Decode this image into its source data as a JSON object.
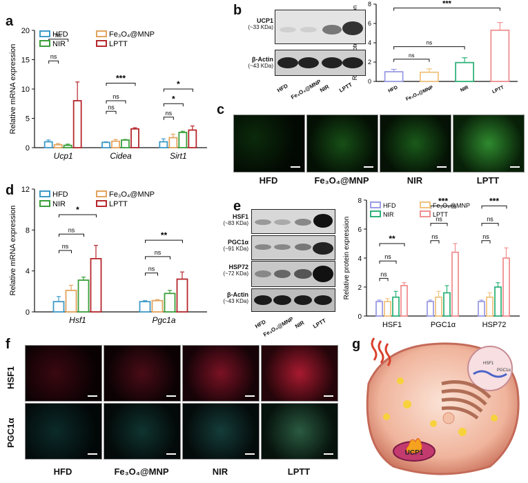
{
  "panels": {
    "a": "a",
    "b": "b",
    "c": "c",
    "d": "d",
    "e": "e",
    "f": "f",
    "g": "g"
  },
  "colors": {
    "HFD": "#3c9ac8",
    "Fe3O4@MNP": "#e3a35c",
    "NIR": "#3a9f3a",
    "LPTT": "#b5262b",
    "HFD_b": "#9b9be6",
    "Fe3O4@MNP_b": "#f1c27d",
    "NIR_b": "#2fb27a",
    "LPTT_b": "#f08f8f"
  },
  "chart_a": {
    "type": "bar",
    "ylabel": "Relative mRNA expression",
    "ylim": [
      0,
      20
    ],
    "yticks": [
      "0",
      "5",
      "10",
      "15",
      "20"
    ],
    "categories": [
      "Ucp1",
      "Cidea",
      "Sirt1"
    ],
    "legend": [
      {
        "label": "HFD",
        "key": "HFD"
      },
      {
        "label": "Fe₃O₄@MNP",
        "key": "Fe3O4@MNP"
      },
      {
        "label": "NIR",
        "key": "NIR"
      },
      {
        "label": "LPTT",
        "key": "LPTT"
      }
    ],
    "series": [
      {
        "key": "HFD",
        "values": [
          1.0,
          0.9,
          1.0
        ],
        "err": [
          0.3,
          0.1,
          0.5
        ]
      },
      {
        "key": "Fe3O4@MNP",
        "values": [
          0.5,
          1.1,
          1.7
        ],
        "err": [
          0.2,
          0.3,
          0.6
        ]
      },
      {
        "key": "NIR",
        "values": [
          0.4,
          1.3,
          2.6
        ],
        "err": [
          0.2,
          0.1,
          0.2
        ]
      },
      {
        "key": "LPTT",
        "values": [
          8.0,
          3.2,
          3.0
        ],
        "err": [
          3.2,
          0.2,
          0.7
        ]
      }
    ],
    "sig": [
      {
        "cat": 0,
        "from": 0,
        "to": 1,
        "y": 14.8,
        "text": "ns"
      },
      {
        "cat": 0,
        "from": 0,
        "to": 2,
        "y": 18.5,
        "text": "ns"
      },
      {
        "cat": 0,
        "from": 0,
        "to": 3,
        "y": 22.5,
        "text": "*"
      },
      {
        "cat": 1,
        "from": 0,
        "to": 1,
        "y": 6.2,
        "text": "ns"
      },
      {
        "cat": 1,
        "from": 0,
        "to": 2,
        "y": 8.0,
        "text": "ns"
      },
      {
        "cat": 1,
        "from": 0,
        "to": 3,
        "y": 11.0,
        "text": "***"
      },
      {
        "cat": 2,
        "from": 0,
        "to": 1,
        "y": 5.2,
        "text": "ns"
      },
      {
        "cat": 2,
        "from": 0,
        "to": 2,
        "y": 7.5,
        "text": "*"
      },
      {
        "cat": 2,
        "from": 0,
        "to": 3,
        "y": 10.0,
        "text": "*"
      }
    ]
  },
  "chart_b": {
    "type": "bar",
    "ylabel": "Relative protein expression",
    "ylim": [
      0,
      8
    ],
    "yticks": [
      "0",
      "2",
      "4",
      "6",
      "8"
    ],
    "categories": [
      "HFD",
      "Fe₃O₄@MNP",
      "NIR",
      "LPTT"
    ],
    "values": [
      1.0,
      0.95,
      1.95,
      5.3
    ],
    "err": [
      0.25,
      0.35,
      0.5,
      0.8
    ],
    "sig": [
      {
        "from": 0,
        "to": 1,
        "y": 2.3,
        "text": "ns"
      },
      {
        "from": 0,
        "to": 2,
        "y": 3.6,
        "text": "ns"
      },
      {
        "from": 0,
        "to": 3,
        "y": 7.6,
        "text": "***"
      }
    ]
  },
  "chart_d": {
    "type": "bar",
    "ylabel": "Relative mRNA expression",
    "ylim": [
      0,
      10
    ],
    "yticks": [
      "0",
      "4",
      "8",
      "12"
    ],
    "ymax": 12,
    "categories": [
      "Hsf1",
      "Pgc1a"
    ],
    "legend": [
      {
        "label": "HFD",
        "key": "HFD"
      },
      {
        "label": "Fe₃O₄@MNP",
        "key": "Fe3O4@MNP"
      },
      {
        "label": "NIR",
        "key": "NIR"
      },
      {
        "label": "LPTT",
        "key": "LPTT"
      }
    ],
    "series": [
      {
        "key": "HFD",
        "values": [
          1.0,
          1.0
        ],
        "err": [
          0.5,
          0.1
        ]
      },
      {
        "key": "Fe3O4@MNP",
        "values": [
          2.1,
          1.1
        ],
        "err": [
          0.5,
          0.1
        ]
      },
      {
        "key": "NIR",
        "values": [
          3.1,
          1.8
        ],
        "err": [
          0.3,
          0.3
        ]
      },
      {
        "key": "LPTT",
        "values": [
          5.2,
          3.2
        ],
        "err": [
          1.3,
          0.7
        ]
      }
    ],
    "sig": [
      {
        "cat": 0,
        "from": 0,
        "to": 1,
        "y": 6.0,
        "text": "ns"
      },
      {
        "cat": 0,
        "from": 0,
        "to": 2,
        "y": 7.6,
        "text": "ns"
      },
      {
        "cat": 0,
        "from": 0,
        "to": 3,
        "y": 9.5,
        "text": "*"
      },
      {
        "cat": 1,
        "from": 0,
        "to": 1,
        "y": 3.8,
        "text": "ns"
      },
      {
        "cat": 1,
        "from": 0,
        "to": 2,
        "y": 5.4,
        "text": "ns"
      },
      {
        "cat": 1,
        "from": 0,
        "to": 3,
        "y": 7.0,
        "text": "**"
      }
    ]
  },
  "chart_e": {
    "type": "bar",
    "ylabel": "Relative protein expression",
    "ylim": [
      0,
      8
    ],
    "yticks": [
      "0",
      "2",
      "4",
      "6",
      "8"
    ],
    "categories": [
      "HSF1",
      "PGC1α",
      "HSP72"
    ],
    "legend": [
      {
        "label": "HFD",
        "key": "HFD_b"
      },
      {
        "label": "Fe₃O₄@MNP",
        "key": "Fe3O4@MNP_b"
      },
      {
        "label": "NIR",
        "key": "NIR_b"
      },
      {
        "label": "LPTT",
        "key": "LPTT_b"
      }
    ],
    "series": [
      {
        "key": "HFD_b",
        "values": [
          1.0,
          1.0,
          1.0
        ],
        "err": [
          0.1,
          0.1,
          0.1
        ]
      },
      {
        "key": "Fe3O4@MNP_b",
        "values": [
          1.0,
          1.3,
          1.3
        ],
        "err": [
          0.2,
          0.4,
          0.3
        ]
      },
      {
        "key": "NIR_b",
        "values": [
          1.3,
          1.6,
          2.0
        ],
        "err": [
          0.4,
          0.5,
          0.3
        ]
      },
      {
        "key": "LPTT_b",
        "values": [
          2.1,
          4.4,
          4.0
        ],
        "err": [
          0.2,
          0.6,
          0.7
        ]
      }
    ],
    "sig": [
      {
        "cat": 0,
        "from": 0,
        "to": 1,
        "y": 2.6,
        "text": "ns"
      },
      {
        "cat": 0,
        "from": 0,
        "to": 2,
        "y": 3.8,
        "text": "ns"
      },
      {
        "cat": 0,
        "from": 0,
        "to": 3,
        "y": 5.0,
        "text": "**"
      },
      {
        "cat": 1,
        "from": 0,
        "to": 1,
        "y": 5.2,
        "text": "ns"
      },
      {
        "cat": 1,
        "from": 0,
        "to": 2,
        "y": 6.4,
        "text": "ns"
      },
      {
        "cat": 1,
        "from": 0,
        "to": 3,
        "y": 7.6,
        "text": "***"
      },
      {
        "cat": 2,
        "from": 0,
        "to": 1,
        "y": 5.2,
        "text": "ns"
      },
      {
        "cat": 2,
        "from": 0,
        "to": 2,
        "y": 6.4,
        "text": "ns"
      },
      {
        "cat": 2,
        "from": 0,
        "to": 3,
        "y": 7.6,
        "text": "***"
      }
    ]
  },
  "blot_b": {
    "rows": [
      {
        "name": "UCP1",
        "kda": "(~33 KDa)"
      },
      {
        "name": "β-Actin",
        "kda": "(~43 KDa)"
      }
    ],
    "lanes": [
      "HFD",
      "Fe₃O₄@MNP",
      "NIR",
      "LPTT"
    ]
  },
  "blot_e": {
    "rows": [
      {
        "name": "HSF1",
        "kda": "(~83 KDa)"
      },
      {
        "name": "PGC1α",
        "kda": "(~91 KDa)"
      },
      {
        "name": "HSP72",
        "kda": "(~72 KDa)"
      },
      {
        "name": "β-Actin",
        "kda": "(~43 KDa)"
      }
    ],
    "lanes": [
      "HFD",
      "Fe₃O₄@MNP",
      "NIR",
      "LPTT"
    ]
  },
  "micro_c": {
    "captions": [
      "HFD",
      "Fe₃O₄@MNP",
      "NIR",
      "LPTT"
    ]
  },
  "micro_f": {
    "rows": [
      "HSF1",
      "PGC1α"
    ],
    "captions": [
      "HFD",
      "Fe₃O₄@MNP",
      "NIR",
      "LPTT"
    ]
  },
  "cell_g": {
    "labels": {
      "hsf1": "HSF1",
      "pgc1a": "PGC1α",
      "ucp1": "UCP1"
    }
  }
}
